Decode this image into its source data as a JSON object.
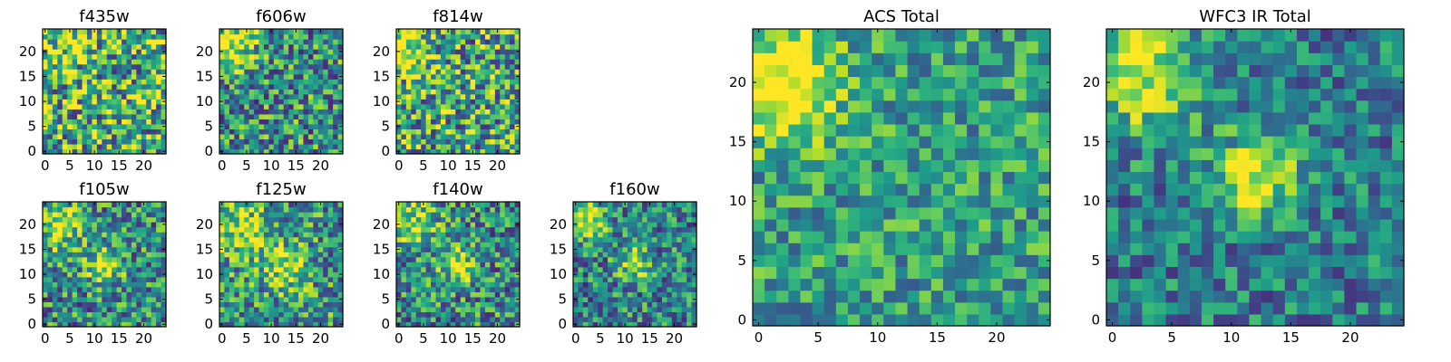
{
  "figure": {
    "description_free": true
  },
  "colors": {
    "viridis": [
      "#440154",
      "#482878",
      "#3e4a89",
      "#31688e",
      "#26828e",
      "#1f9e89",
      "#35b779",
      "#6ece58",
      "#b5de2b",
      "#fde725"
    ]
  },
  "chart_data": [
    {
      "type": "heatmap",
      "title": "f435w",
      "grid_size": 25,
      "xticks": [
        0,
        5,
        10,
        15,
        20
      ],
      "yticks": [
        0,
        5,
        10,
        15,
        20
      ],
      "xlim": [
        -0.5,
        24.5
      ],
      "ylim": [
        -0.5,
        24.5
      ],
      "colormap": "viridis",
      "seed": 11,
      "blobs": [
        {
          "cx": 3,
          "cy": 21,
          "r": 4,
          "amp": 0.15
        }
      ],
      "noise": 0.95,
      "base": 0.62
    },
    {
      "type": "heatmap",
      "title": "f606w",
      "grid_size": 25,
      "xticks": [
        0,
        5,
        10,
        15,
        20
      ],
      "yticks": [
        0,
        5,
        10,
        15,
        20
      ],
      "xlim": [
        -0.5,
        24.5
      ],
      "ylim": [
        -0.5,
        24.5
      ],
      "colormap": "viridis",
      "seed": 23,
      "blobs": [
        {
          "cx": 2,
          "cy": 21,
          "r": 3.5,
          "amp": 0.45
        }
      ],
      "noise": 0.8,
      "base": 0.5
    },
    {
      "type": "heatmap",
      "title": "f814w",
      "grid_size": 25,
      "xticks": [
        0,
        5,
        10,
        15,
        20
      ],
      "yticks": [
        0,
        5,
        10,
        15,
        20
      ],
      "xlim": [
        -0.5,
        24.5
      ],
      "ylim": [
        -0.5,
        24.5
      ],
      "colormap": "viridis",
      "seed": 37,
      "blobs": [
        {
          "cx": 2,
          "cy": 20,
          "r": 3.5,
          "amp": 0.35
        }
      ],
      "noise": 0.9,
      "base": 0.58
    },
    {
      "type": "heatmap",
      "title": "f105w",
      "grid_size": 25,
      "xticks": [
        0,
        5,
        10,
        15,
        20
      ],
      "yticks": [
        0,
        5,
        10,
        15,
        20
      ],
      "xlim": [
        -0.5,
        24.5
      ],
      "ylim": [
        -0.5,
        24.5
      ],
      "colormap": "viridis",
      "seed": 41,
      "blobs": [
        {
          "cx": 3,
          "cy": 20,
          "r": 3.5,
          "amp": 0.4
        },
        {
          "cx": 12,
          "cy": 12,
          "r": 2.5,
          "amp": 0.45
        }
      ],
      "noise": 0.75,
      "base": 0.48
    },
    {
      "type": "heatmap",
      "title": "f125w",
      "grid_size": 25,
      "xticks": [
        0,
        5,
        10,
        15,
        20
      ],
      "yticks": [
        0,
        5,
        10,
        15,
        20
      ],
      "xlim": [
        -0.5,
        24.5
      ],
      "ylim": [
        -0.5,
        24.5
      ],
      "colormap": "viridis",
      "seed": 53,
      "blobs": [
        {
          "cx": 4,
          "cy": 19,
          "r": 4,
          "amp": 0.35
        },
        {
          "cx": 13,
          "cy": 11,
          "r": 3,
          "amp": 0.4
        }
      ],
      "noise": 0.75,
      "base": 0.52
    },
    {
      "type": "heatmap",
      "title": "f140w",
      "grid_size": 25,
      "xticks": [
        0,
        5,
        10,
        15,
        20
      ],
      "yticks": [
        0,
        5,
        10,
        15,
        20
      ],
      "xlim": [
        -0.5,
        24.5
      ],
      "ylim": [
        -0.5,
        24.5
      ],
      "colormap": "viridis",
      "seed": 67,
      "blobs": [
        {
          "cx": 3,
          "cy": 20,
          "r": 3.5,
          "amp": 0.4
        },
        {
          "cx": 12,
          "cy": 12,
          "r": 2.5,
          "amp": 0.45
        }
      ],
      "noise": 0.75,
      "base": 0.48
    },
    {
      "type": "heatmap",
      "title": "f160w",
      "grid_size": 25,
      "xticks": [
        0,
        5,
        10,
        15,
        20
      ],
      "yticks": [
        0,
        5,
        10,
        15,
        20
      ],
      "xlim": [
        -0.5,
        24.5
      ],
      "ylim": [
        -0.5,
        24.5
      ],
      "colormap": "viridis",
      "seed": 79,
      "blobs": [
        {
          "cx": 2,
          "cy": 21,
          "r": 3,
          "amp": 0.5
        },
        {
          "cx": 12,
          "cy": 12,
          "r": 2.5,
          "amp": 0.4
        }
      ],
      "noise": 0.7,
      "base": 0.45
    },
    {
      "type": "heatmap",
      "title": "ACS Total",
      "grid_size": 25,
      "xticks": [
        0,
        5,
        10,
        15,
        20
      ],
      "yticks": [
        0,
        5,
        10,
        15,
        20
      ],
      "xlim": [
        -0.5,
        24.5
      ],
      "ylim": [
        -0.5,
        24.5
      ],
      "colormap": "viridis",
      "seed": 97,
      "blobs": [
        {
          "cx": 2,
          "cy": 20,
          "r": 3.5,
          "amp": 0.55
        }
      ],
      "noise": 0.55,
      "base": 0.55
    },
    {
      "type": "heatmap",
      "title": "WFC3 IR Total",
      "grid_size": 25,
      "xticks": [
        0,
        5,
        10,
        15,
        20
      ],
      "yticks": [
        0,
        5,
        10,
        15,
        20
      ],
      "xlim": [
        -0.5,
        24.5
      ],
      "ylim": [
        -0.5,
        24.5
      ],
      "colormap": "viridis",
      "seed": 113,
      "blobs": [
        {
          "cx": 2,
          "cy": 21,
          "r": 3.5,
          "amp": 0.55
        },
        {
          "cx": 12,
          "cy": 12,
          "r": 2.5,
          "amp": 0.55
        }
      ],
      "noise": 0.55,
      "base": 0.42
    }
  ]
}
